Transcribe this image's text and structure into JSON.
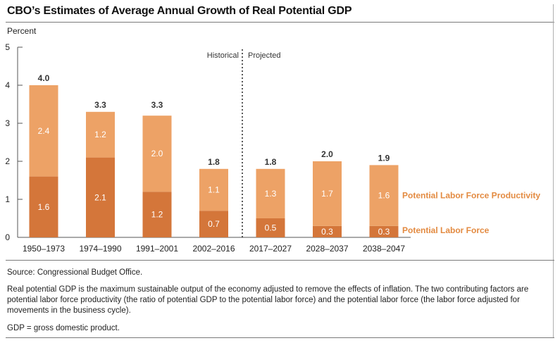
{
  "chart_data": {
    "type": "bar",
    "title": "CBO’s Estimates of Average Annual Growth of Real Potential GDP",
    "ylabel": "Percent",
    "ylim": [
      0,
      5
    ],
    "yticks": [
      "0",
      "1",
      "2",
      "3",
      "4",
      "5"
    ],
    "categories": [
      "1950–1973",
      "1974–1990",
      "1991–2001",
      "2002–2016",
      "2017–2027",
      "2028–2037",
      "2038–2047"
    ],
    "series": [
      {
        "name": "Potential Labor Force",
        "values": [
          1.6,
          2.1,
          1.2,
          0.7,
          0.5,
          0.3,
          0.3
        ],
        "value_labels": [
          "1.6",
          "2.1",
          "1.2",
          "0.7",
          "0.5",
          "0.3",
          "0.3"
        ],
        "color": "#d4763a"
      },
      {
        "name": "Potential Labor Force Productivity",
        "values": [
          2.4,
          1.2,
          2.0,
          1.1,
          1.3,
          1.7,
          1.6
        ],
        "value_labels": [
          "2.4",
          "1.2",
          "2.0",
          "1.1",
          "1.3",
          "1.7",
          "1.6"
        ],
        "color": "#eda266"
      }
    ],
    "totals": [
      "4.0",
      "3.3",
      "3.3",
      "1.8",
      "1.8",
      "2.0",
      "1.9"
    ],
    "total_values": [
      4.0,
      3.3,
      3.3,
      1.8,
      1.8,
      2.0,
      1.9
    ],
    "divider": {
      "left_label": "Historical",
      "right_label": "Projected"
    },
    "legend_placement": "right of last bar",
    "legend_color": "#e38a40",
    "grid": false
  },
  "notes": {
    "source": "Source: Congressional Budget Office.",
    "definition": "Real potential GDP is the maximum sustainable output of the economy adjusted to remove the effects of inflation. The two contributing factors are potential labor force productivity (the ratio of potential GDP to the potential labor force) and the potential labor force (the labor force adjusted for movements in the business cycle).",
    "abbreviation": "GDP = gross domestic product."
  }
}
